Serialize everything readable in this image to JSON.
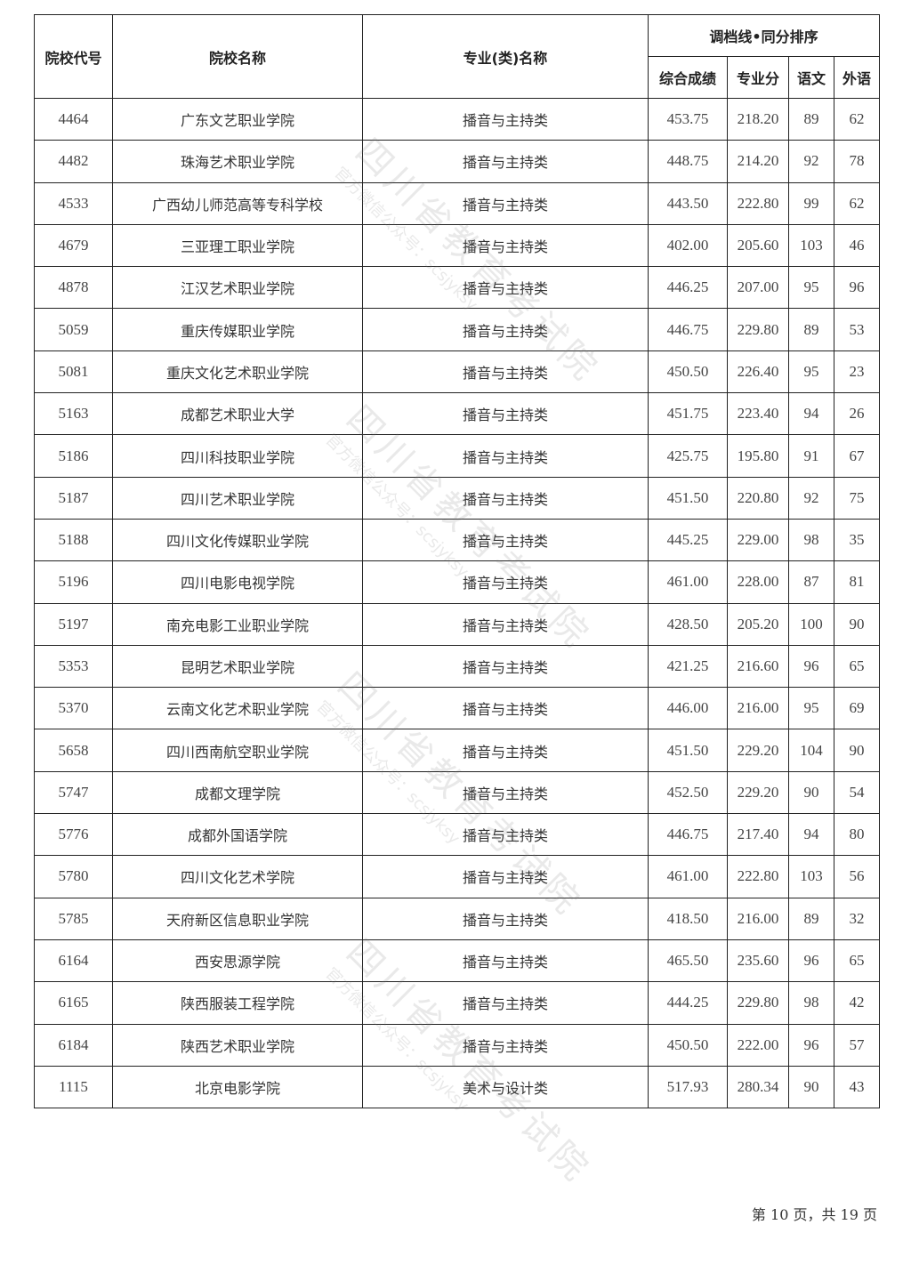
{
  "table": {
    "headers": {
      "code": "院校代号",
      "school": "院校名称",
      "major": "专业(类)名称",
      "group": "调档线•同分排序",
      "total": "综合成绩",
      "major_score": "专业分",
      "chinese": "语文",
      "foreign": "外语"
    },
    "rows": [
      [
        "4464",
        "广东文艺职业学院",
        "播音与主持类",
        "453.75",
        "218.20",
        "89",
        "62"
      ],
      [
        "4482",
        "珠海艺术职业学院",
        "播音与主持类",
        "448.75",
        "214.20",
        "92",
        "78"
      ],
      [
        "4533",
        "广西幼儿师范高等专科学校",
        "播音与主持类",
        "443.50",
        "222.80",
        "99",
        "62"
      ],
      [
        "4679",
        "三亚理工职业学院",
        "播音与主持类",
        "402.00",
        "205.60",
        "103",
        "46"
      ],
      [
        "4878",
        "江汉艺术职业学院",
        "播音与主持类",
        "446.25",
        "207.00",
        "95",
        "96"
      ],
      [
        "5059",
        "重庆传媒职业学院",
        "播音与主持类",
        "446.75",
        "229.80",
        "89",
        "53"
      ],
      [
        "5081",
        "重庆文化艺术职业学院",
        "播音与主持类",
        "450.50",
        "226.40",
        "95",
        "23"
      ],
      [
        "5163",
        "成都艺术职业大学",
        "播音与主持类",
        "451.75",
        "223.40",
        "94",
        "26"
      ],
      [
        "5186",
        "四川科技职业学院",
        "播音与主持类",
        "425.75",
        "195.80",
        "91",
        "67"
      ],
      [
        "5187",
        "四川艺术职业学院",
        "播音与主持类",
        "451.50",
        "220.80",
        "92",
        "75"
      ],
      [
        "5188",
        "四川文化传媒职业学院",
        "播音与主持类",
        "445.25",
        "229.00",
        "98",
        "35"
      ],
      [
        "5196",
        "四川电影电视学院",
        "播音与主持类",
        "461.00",
        "228.00",
        "87",
        "81"
      ],
      [
        "5197",
        "南充电影工业职业学院",
        "播音与主持类",
        "428.50",
        "205.20",
        "100",
        "90"
      ],
      [
        "5353",
        "昆明艺术职业学院",
        "播音与主持类",
        "421.25",
        "216.60",
        "96",
        "65"
      ],
      [
        "5370",
        "云南文化艺术职业学院",
        "播音与主持类",
        "446.00",
        "216.00",
        "95",
        "69"
      ],
      [
        "5658",
        "四川西南航空职业学院",
        "播音与主持类",
        "451.50",
        "229.20",
        "104",
        "90"
      ],
      [
        "5747",
        "成都文理学院",
        "播音与主持类",
        "452.50",
        "229.20",
        "90",
        "54"
      ],
      [
        "5776",
        "成都外国语学院",
        "播音与主持类",
        "446.75",
        "217.40",
        "94",
        "80"
      ],
      [
        "5780",
        "四川文化艺术学院",
        "播音与主持类",
        "461.00",
        "222.80",
        "103",
        "56"
      ],
      [
        "5785",
        "天府新区信息职业学院",
        "播音与主持类",
        "418.50",
        "216.00",
        "89",
        "32"
      ],
      [
        "6164",
        "西安思源学院",
        "播音与主持类",
        "465.50",
        "235.60",
        "96",
        "65"
      ],
      [
        "6165",
        "陕西服装工程学院",
        "播音与主持类",
        "444.25",
        "229.80",
        "98",
        "42"
      ],
      [
        "6184",
        "陕西艺术职业学院",
        "播音与主持类",
        "450.50",
        "222.00",
        "96",
        "57"
      ],
      [
        "1115",
        "北京电影学院",
        "美术与设计类",
        "517.93",
        "280.34",
        "90",
        "43"
      ]
    ]
  },
  "watermark": {
    "line1": "四川省教育考试院",
    "line2": "官方微信公众号：scsjyksy"
  },
  "footer": {
    "page": "第 10 页，共 19 页"
  }
}
